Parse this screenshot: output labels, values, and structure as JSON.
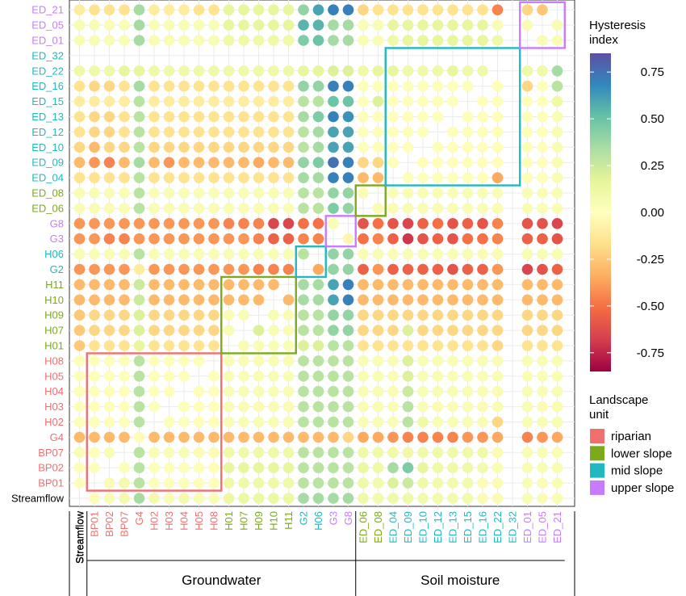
{
  "chart_data": {
    "type": "heatmap",
    "title": "",
    "xlabel": "",
    "ylabel": "",
    "x_labels": [
      "Streamflow",
      "BP01",
      "BP02",
      "BP07",
      "G4",
      "H02",
      "H03",
      "H04",
      "H05",
      "H08",
      "H01",
      "H07",
      "H09",
      "H10",
      "H11",
      "G2",
      "H06",
      "G3",
      "G8",
      "ED_06",
      "ED_08",
      "ED_04",
      "ED_09",
      "ED_10",
      "ED_12",
      "ED_13",
      "ED_15",
      "ED_16",
      "ED_22",
      "ED_32",
      "ED_01",
      "ED_05",
      "ED_21"
    ],
    "y_labels": [
      "Streamflow",
      "BP01",
      "BP02",
      "BP07",
      "G4",
      "H02",
      "H03",
      "H04",
      "H05",
      "H08",
      "H01",
      "H07",
      "H09",
      "H10",
      "H11",
      "G2",
      "H06",
      "G3",
      "G8",
      "ED_06",
      "ED_08",
      "ED_04",
      "ED_09",
      "ED_10",
      "ED_12",
      "ED_13",
      "ED_15",
      "ED_16",
      "ED_22",
      "ED_32",
      "ED_01",
      "ED_05",
      "ED_21"
    ],
    "label_units": [
      "none",
      "riparian",
      "riparian",
      "riparian",
      "riparian",
      "riparian",
      "riparian",
      "riparian",
      "riparian",
      "riparian",
      "lower",
      "lower",
      "lower",
      "lower",
      "lower",
      "mid",
      "mid",
      "upper",
      "upper",
      "lower",
      "lower",
      "mid",
      "mid",
      "mid",
      "mid",
      "mid",
      "mid",
      "mid",
      "mid",
      "mid",
      "upper",
      "upper",
      "upper"
    ],
    "row_values": [
      [
        null,
        -0.02,
        0.05,
        0.08,
        0.35,
        0.08,
        0.05,
        0.08,
        0.05,
        0.05,
        0.12,
        0.12,
        0.12,
        0.12,
        0.12,
        0.35,
        0.35,
        0.35,
        0.35,
        0.1,
        0.08,
        0.1,
        0.1,
        0.08,
        0.08,
        0.08,
        0.08,
        0.05,
        0.05,
        null,
        0.05,
        0.05,
        0.05
      ],
      [
        0.02,
        null,
        0.05,
        0.08,
        0.3,
        0.02,
        0.02,
        0.02,
        0.02,
        0.02,
        0.1,
        0.1,
        0.1,
        0.1,
        0.1,
        0.3,
        0.3,
        0.3,
        0.3,
        0.1,
        0.08,
        0.2,
        0.25,
        0.1,
        0.08,
        0.08,
        0.08,
        0.05,
        0.05,
        null,
        0.05,
        0.05,
        0.05
      ],
      [
        0.02,
        0.02,
        null,
        0.02,
        0.3,
        0.02,
        0.02,
        0.02,
        0.02,
        0.02,
        0.15,
        0.15,
        0.15,
        0.15,
        0.15,
        0.3,
        0.3,
        0.3,
        0.3,
        0.12,
        0.1,
        0.35,
        0.45,
        0.15,
        0.1,
        0.1,
        0.1,
        0.08,
        0.05,
        null,
        0.05,
        0.05,
        0.05
      ],
      [
        0.05,
        0.02,
        0.05,
        null,
        0.3,
        0.05,
        0.05,
        0.05,
        0.05,
        0.05,
        0.1,
        0.1,
        0.1,
        0.1,
        0.1,
        0.3,
        0.3,
        0.3,
        0.3,
        0.1,
        0.1,
        0.1,
        0.1,
        0.1,
        0.1,
        0.1,
        0.1,
        0.1,
        0.05,
        null,
        0.05,
        0.05,
        0.05
      ],
      [
        -0.3,
        -0.3,
        -0.3,
        -0.3,
        -0.02,
        -0.3,
        -0.3,
        -0.3,
        -0.3,
        -0.3,
        -0.3,
        -0.3,
        -0.3,
        -0.3,
        -0.3,
        -0.3,
        -0.3,
        -0.3,
        -0.2,
        -0.35,
        -0.35,
        -0.4,
        -0.45,
        -0.45,
        -0.45,
        -0.45,
        -0.4,
        -0.4,
        -0.35,
        null,
        -0.45,
        -0.4,
        -0.35
      ],
      [
        0.02,
        0.02,
        0.02,
        0.02,
        0.3,
        null,
        0.02,
        0.02,
        0.02,
        0.02,
        0.05,
        0.05,
        0.05,
        0.05,
        0.05,
        0.3,
        0.3,
        0.3,
        0.3,
        0.05,
        0.05,
        0.05,
        0.3,
        0.1,
        0.05,
        0.05,
        0.05,
        0.05,
        -0.2,
        null,
        0.05,
        0.05,
        0.05
      ],
      [
        0.02,
        0.02,
        0.02,
        0.02,
        0.3,
        0.02,
        null,
        0.02,
        0.02,
        0.02,
        0.05,
        0.05,
        0.05,
        0.05,
        0.05,
        0.3,
        0.3,
        0.3,
        0.3,
        0.05,
        0.05,
        0.05,
        0.3,
        0.05,
        0.05,
        0.05,
        0.05,
        0.05,
        0.05,
        null,
        0.05,
        0.05,
        0.05
      ],
      [
        0.02,
        0.02,
        0.02,
        0.02,
        0.3,
        0.02,
        0.02,
        null,
        0.02,
        0.02,
        0.05,
        0.05,
        0.05,
        0.05,
        0.05,
        0.3,
        0.3,
        0.3,
        0.3,
        0.05,
        0.05,
        0.05,
        0.25,
        0.05,
        0.05,
        0.05,
        0.05,
        0.05,
        0.05,
        null,
        0.05,
        0.05,
        0.05
      ],
      [
        0.02,
        0.02,
        0.02,
        0.02,
        0.3,
        0.02,
        0.02,
        0.02,
        null,
        0.02,
        0.05,
        0.05,
        0.05,
        0.05,
        0.05,
        0.3,
        0.3,
        0.3,
        0.3,
        0.05,
        0.05,
        0.05,
        0.2,
        0.05,
        0.05,
        0.05,
        0.05,
        0.05,
        0.05,
        null,
        0.05,
        0.05,
        0.05
      ],
      [
        0.02,
        0.02,
        0.02,
        0.02,
        0.3,
        0.02,
        0.02,
        0.02,
        0.02,
        null,
        0.05,
        0.05,
        0.05,
        0.05,
        0.05,
        0.3,
        0.3,
        0.3,
        0.3,
        0.05,
        0.05,
        0.05,
        0.2,
        0.05,
        0.05,
        0.05,
        0.05,
        0.05,
        0.05,
        null,
        0.05,
        0.05,
        0.05
      ],
      [
        -0.25,
        -0.15,
        -0.15,
        -0.15,
        0.15,
        -0.15,
        -0.15,
        -0.15,
        -0.15,
        -0.15,
        null,
        0.05,
        0.05,
        0.05,
        0.05,
        0.2,
        0.2,
        0.3,
        0.3,
        -0.15,
        -0.15,
        -0.15,
        -0.15,
        -0.15,
        -0.15,
        -0.15,
        -0.15,
        -0.15,
        -0.2,
        null,
        -0.15,
        -0.15,
        -0.15
      ],
      [
        -0.25,
        -0.2,
        -0.2,
        -0.2,
        0.2,
        -0.2,
        -0.2,
        -0.2,
        -0.2,
        -0.2,
        0.05,
        null,
        0.2,
        0.05,
        0.05,
        0.3,
        0.3,
        0.4,
        0.4,
        -0.2,
        -0.2,
        -0.2,
        0.2,
        -0.2,
        -0.2,
        -0.2,
        -0.2,
        -0.2,
        -0.2,
        null,
        -0.2,
        -0.2,
        -0.2
      ],
      [
        -0.25,
        -0.2,
        -0.2,
        -0.2,
        0.2,
        -0.2,
        -0.2,
        -0.2,
        -0.2,
        -0.2,
        0.05,
        0.05,
        null,
        0.05,
        0.05,
        0.3,
        0.3,
        0.4,
        0.4,
        -0.2,
        -0.2,
        -0.2,
        -0.2,
        -0.2,
        -0.2,
        -0.2,
        -0.2,
        -0.2,
        -0.2,
        null,
        -0.2,
        -0.2,
        -0.2
      ],
      [
        -0.3,
        -0.3,
        -0.3,
        -0.3,
        0.25,
        -0.3,
        -0.3,
        -0.3,
        -0.3,
        -0.3,
        -0.3,
        -0.3,
        -0.3,
        null,
        -0.3,
        0.35,
        0.35,
        0.6,
        0.7,
        -0.3,
        -0.3,
        -0.3,
        -0.3,
        -0.3,
        -0.3,
        -0.3,
        -0.3,
        -0.3,
        -0.3,
        null,
        -0.3,
        -0.3,
        -0.3
      ],
      [
        -0.3,
        -0.3,
        -0.3,
        -0.3,
        0.25,
        -0.3,
        -0.3,
        -0.3,
        -0.3,
        -0.3,
        -0.3,
        -0.3,
        -0.3,
        -0.3,
        null,
        0.35,
        0.35,
        0.6,
        0.7,
        -0.3,
        -0.3,
        -0.3,
        -0.3,
        -0.3,
        -0.3,
        -0.3,
        -0.3,
        -0.3,
        -0.3,
        null,
        -0.3,
        -0.3,
        -0.3
      ],
      [
        -0.4,
        -0.4,
        -0.4,
        -0.4,
        -0.1,
        -0.4,
        -0.4,
        -0.4,
        -0.4,
        -0.4,
        -0.4,
        -0.4,
        -0.45,
        -0.45,
        -0.45,
        null,
        -0.35,
        0.4,
        0.4,
        -0.55,
        -0.4,
        -0.55,
        -0.55,
        -0.55,
        -0.55,
        -0.6,
        -0.55,
        -0.55,
        -0.4,
        null,
        -0.65,
        -0.6,
        -0.55
      ],
      [
        0.05,
        0.05,
        0.05,
        0.05,
        0.3,
        0.05,
        0.05,
        0.05,
        0.05,
        0.05,
        0.05,
        0.05,
        0.05,
        0.05,
        0.05,
        0.3,
        null,
        0.4,
        0.4,
        0.05,
        0.05,
        0.05,
        0.05,
        0.05,
        0.05,
        0.05,
        0.05,
        0.05,
        0.05,
        null,
        0.05,
        0.05,
        0.05
      ],
      [
        -0.4,
        -0.4,
        -0.45,
        -0.45,
        -0.4,
        -0.4,
        -0.4,
        -0.4,
        -0.4,
        -0.4,
        -0.4,
        -0.4,
        -0.45,
        -0.55,
        -0.55,
        -0.45,
        -0.45,
        null,
        -0.05,
        -0.5,
        -0.45,
        -0.55,
        -0.7,
        -0.6,
        -0.55,
        -0.6,
        -0.5,
        -0.5,
        -0.45,
        null,
        -0.55,
        -0.55,
        -0.6
      ],
      [
        -0.4,
        -0.4,
        -0.4,
        -0.4,
        -0.4,
        -0.4,
        -0.4,
        -0.4,
        -0.4,
        -0.4,
        -0.45,
        -0.45,
        -0.45,
        -0.65,
        -0.65,
        -0.5,
        -0.5,
        0.05,
        null,
        -0.6,
        -0.5,
        -0.6,
        -0.65,
        -0.55,
        -0.5,
        -0.6,
        -0.55,
        -0.6,
        -0.45,
        null,
        -0.6,
        -0.6,
        -0.65
      ],
      [
        0.05,
        0.05,
        0.05,
        0.05,
        0.3,
        0.05,
        0.05,
        0.05,
        0.05,
        0.05,
        0.05,
        0.05,
        0.05,
        0.05,
        0.05,
        0.3,
        0.3,
        0.45,
        0.4,
        null,
        0.05,
        0.05,
        0.05,
        0.05,
        0.05,
        0.05,
        0.05,
        0.05,
        0.05,
        null,
        0.05,
        0.05,
        0.05
      ],
      [
        0.05,
        0.05,
        0.05,
        0.05,
        0.3,
        0.05,
        0.05,
        0.05,
        0.05,
        0.05,
        0.05,
        0.05,
        0.05,
        0.05,
        0.05,
        0.3,
        0.3,
        0.4,
        0.4,
        0.05,
        null,
        0.05,
        0.05,
        0.05,
        0.05,
        0.05,
        0.05,
        0.05,
        0.05,
        null,
        0.05,
        0.05,
        0.05
      ],
      [
        -0.15,
        -0.15,
        -0.15,
        -0.15,
        0.3,
        -0.15,
        -0.15,
        -0.15,
        -0.15,
        -0.15,
        -0.15,
        -0.15,
        -0.15,
        -0.15,
        -0.15,
        0.35,
        0.35,
        0.7,
        0.7,
        -0.3,
        -0.3,
        null,
        0.02,
        0.02,
        0.02,
        0.02,
        0.02,
        0.02,
        -0.35,
        null,
        0.02,
        0.02,
        0.05
      ],
      [
        -0.3,
        -0.4,
        -0.45,
        -0.3,
        0.35,
        -0.3,
        -0.4,
        -0.3,
        -0.3,
        -0.3,
        -0.3,
        -0.3,
        -0.35,
        -0.3,
        -0.3,
        0.4,
        0.45,
        0.75,
        0.7,
        -0.2,
        -0.2,
        0.02,
        null,
        0.02,
        0.02,
        0.02,
        0.02,
        0.02,
        0.02,
        null,
        0.02,
        0.02,
        0.05
      ],
      [
        -0.2,
        -0.3,
        -0.2,
        -0.2,
        0.3,
        -0.2,
        -0.2,
        -0.2,
        -0.2,
        -0.2,
        -0.2,
        -0.2,
        -0.2,
        -0.2,
        -0.2,
        0.3,
        0.35,
        0.6,
        0.6,
        0.02,
        0.02,
        0.02,
        0.02,
        null,
        0.02,
        0.02,
        0.02,
        0.02,
        0.02,
        null,
        0.02,
        0.02,
        0.05
      ],
      [
        -0.15,
        -0.2,
        -0.2,
        -0.15,
        0.3,
        -0.15,
        -0.15,
        -0.15,
        -0.15,
        -0.15,
        -0.15,
        -0.15,
        -0.15,
        -0.15,
        -0.15,
        0.3,
        0.35,
        0.6,
        0.6,
        0.02,
        0.02,
        0.02,
        0.02,
        0.02,
        null,
        0.02,
        0.02,
        0.02,
        0.02,
        null,
        0.02,
        0.02,
        0.05
      ],
      [
        -0.15,
        -0.2,
        -0.2,
        -0.15,
        0.3,
        -0.15,
        -0.15,
        -0.15,
        -0.15,
        -0.15,
        -0.15,
        -0.15,
        -0.15,
        -0.15,
        -0.15,
        0.35,
        0.45,
        0.7,
        0.65,
        0.02,
        0.02,
        0.02,
        0.02,
        0.02,
        0.02,
        null,
        0.02,
        0.02,
        0.02,
        null,
        0.02,
        0.02,
        0.05
      ],
      [
        -0.1,
        -0.1,
        -0.1,
        -0.1,
        0.3,
        -0.1,
        -0.1,
        -0.1,
        -0.1,
        -0.1,
        -0.1,
        -0.1,
        -0.1,
        -0.1,
        -0.1,
        0.3,
        0.3,
        0.5,
        0.5,
        0.02,
        0.2,
        0.02,
        0.02,
        0.02,
        0.02,
        0.02,
        null,
        0.02,
        0.02,
        null,
        0.02,
        0.02,
        0.1
      ],
      [
        -0.15,
        -0.2,
        -0.2,
        -0.15,
        0.35,
        -0.15,
        -0.15,
        -0.15,
        -0.15,
        -0.15,
        -0.15,
        -0.15,
        -0.15,
        -0.15,
        -0.15,
        0.4,
        0.4,
        0.7,
        0.7,
        0.02,
        0.02,
        0.02,
        0.02,
        0.02,
        0.02,
        0.02,
        0.02,
        null,
        0.02,
        null,
        -0.2,
        0.02,
        0.3
      ],
      [
        0.1,
        0.1,
        0.1,
        0.15,
        0.15,
        0.1,
        0.1,
        0.1,
        0.1,
        0.1,
        0.1,
        0.1,
        0.1,
        0.1,
        0.1,
        0.15,
        0.15,
        0.2,
        0.2,
        0.1,
        0.15,
        0.15,
        0.1,
        0.1,
        0.1,
        0.15,
        0.1,
        0.1,
        null,
        null,
        0.1,
        0.1,
        0.35
      ],
      [
        null,
        null,
        null,
        null,
        null,
        null,
        null,
        null,
        null,
        null,
        null,
        null,
        null,
        null,
        null,
        null,
        null,
        null,
        null,
        null,
        null,
        null,
        null,
        null,
        null,
        null,
        null,
        null,
        null,
        null,
        null,
        null,
        null
      ],
      [
        0.05,
        0.05,
        0.05,
        0.05,
        0.35,
        0.05,
        0.05,
        0.05,
        0.05,
        0.05,
        0.1,
        0.1,
        0.1,
        0.1,
        0.1,
        0.45,
        0.5,
        0.35,
        0.35,
        0.05,
        0.05,
        0.1,
        0.15,
        0.15,
        0.15,
        0.15,
        0.15,
        0.15,
        0.1,
        null,
        null,
        0.05,
        0.05
      ],
      [
        0.05,
        0.05,
        0.05,
        0.05,
        0.35,
        0.05,
        0.05,
        0.05,
        0.05,
        0.05,
        0.15,
        0.15,
        0.15,
        0.15,
        0.15,
        0.55,
        0.55,
        0.35,
        0.35,
        0.05,
        0.05,
        0.15,
        0.15,
        0.15,
        0.15,
        0.15,
        0.15,
        0.15,
        0.05,
        null,
        0.05,
        null,
        0.05
      ],
      [
        -0.1,
        -0.15,
        -0.15,
        -0.15,
        0.35,
        -0.1,
        -0.1,
        -0.1,
        -0.15,
        -0.15,
        0.15,
        0.15,
        0.15,
        0.15,
        0.15,
        0.4,
        0.6,
        0.7,
        0.7,
        -0.2,
        -0.15,
        -0.15,
        -0.15,
        -0.15,
        -0.15,
        -0.15,
        -0.15,
        -0.15,
        -0.45,
        null,
        -0.2,
        -0.25,
        null
      ]
    ],
    "colorbar": {
      "title": [
        "Hysteresis",
        "index"
      ],
      "ticks": [
        "0.75",
        "0.50",
        "0.25",
        "0.00",
        "-0.25",
        "-0.50",
        "-0.75"
      ],
      "tick_values": [
        0.75,
        0.5,
        0.25,
        0.0,
        -0.25,
        -0.5,
        -0.75
      ],
      "range": [
        -0.85,
        0.85
      ]
    },
    "legend": {
      "title": [
        "Landscape",
        "unit"
      ],
      "items": [
        {
          "key": "riparian",
          "label": "riparian",
          "color": "#f07070"
        },
        {
          "key": "lower",
          "label": "lower slope",
          "color": "#7caa1c"
        },
        {
          "key": "mid",
          "label": "mid slope",
          "color": "#22b8c0"
        },
        {
          "key": "upper",
          "label": "upper slope",
          "color": "#c77cff"
        }
      ],
      "placement": "right"
    },
    "group_labels": [
      {
        "label": "Streamflow",
        "from": 0,
        "to": 0
      },
      {
        "label": "Groundwater",
        "from": 1,
        "to": 18
      },
      {
        "label": "Soil moisture",
        "from": 19,
        "to": 32
      }
    ],
    "highlight_boxes": [
      {
        "unit": "riparian",
        "from": 1,
        "to": 9
      },
      {
        "unit": "lower",
        "from": 10,
        "to": 14
      },
      {
        "unit": "mid",
        "from": 15,
        "to": 16
      },
      {
        "unit": "upper",
        "from": 17,
        "to": 18
      },
      {
        "unit": "lower",
        "from": 19,
        "to": 20
      },
      {
        "unit": "mid",
        "from": 21,
        "to": 29
      },
      {
        "unit": "upper",
        "from": 30,
        "to": 32
      }
    ],
    "unit_colors": {
      "none": "#000000",
      "riparian": "#f07070",
      "lower": "#7caa1c",
      "mid": "#22b8c0",
      "upper": "#c77cff"
    },
    "grid": true
  }
}
